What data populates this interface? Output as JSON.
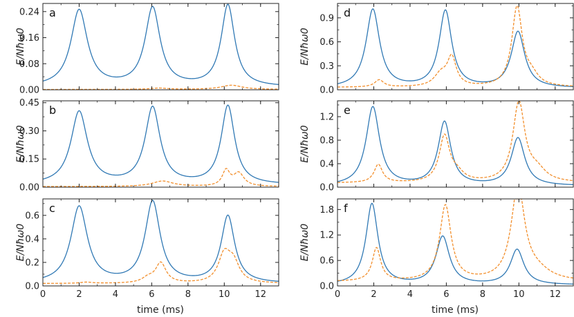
{
  "figure": {
    "xlabel_left": "time (ms)",
    "xlabel_right": "time (ms)"
  },
  "colors": {
    "series1": "#2f78b4",
    "series2": "#f28e2b"
  },
  "chart_data": [
    {
      "type": "line",
      "panel": "a",
      "ylabel": "E/Nħω0",
      "xlim": [
        0,
        13
      ],
      "ylim": [
        0,
        0.265
      ],
      "xticks": [
        "0",
        "2",
        "4",
        "6",
        "8",
        "10",
        "12"
      ],
      "yticks": [
        "0.00",
        "0.08",
        "0.16",
        "0.24"
      ],
      "ytick_values": [
        0,
        0.08,
        0.16,
        0.24
      ],
      "series": [
        {
          "style": "solid",
          "peaks": [
            [
              2.0,
              0.243,
              0.55
            ],
            [
              6.05,
              0.249,
              0.5
            ],
            [
              10.2,
              0.258,
              0.45
            ]
          ],
          "baseline": 0.008
        },
        {
          "style": "dashed",
          "peaks": [
            [
              6.4,
              0.005,
              0.6
            ],
            [
              10.4,
              0.014,
              0.7
            ]
          ],
          "baseline": 0.001
        }
      ]
    },
    {
      "type": "line",
      "panel": "b",
      "ylabel": "E/Nħω0",
      "xlim": [
        0,
        13
      ],
      "ylim": [
        0,
        0.46
      ],
      "xticks": [
        "0",
        "2",
        "4",
        "6",
        "8",
        "10",
        "12"
      ],
      "yticks": [
        "0.00",
        "0.15",
        "0.30",
        "0.45"
      ],
      "ytick_values": [
        0,
        0.15,
        0.3,
        0.45
      ],
      "series": [
        {
          "style": "solid",
          "peaks": [
            [
              2.0,
              0.4,
              0.55
            ],
            [
              6.05,
              0.42,
              0.5
            ],
            [
              10.2,
              0.43,
              0.45
            ]
          ],
          "baseline": 0.012
        },
        {
          "style": "dashed",
          "peaks": [
            [
              6.6,
              0.032,
              0.7
            ],
            [
              10.1,
              0.085,
              0.25
            ],
            [
              10.8,
              0.072,
              0.35
            ]
          ],
          "baseline": 0.003
        }
      ]
    },
    {
      "type": "line",
      "panel": "c",
      "ylabel": "E/Nħω0",
      "xlim": [
        0,
        13
      ],
      "ylim": [
        0,
        0.74
      ],
      "xticks": [
        "0",
        "2",
        "4",
        "6",
        "8",
        "10",
        "12"
      ],
      "yticks": [
        "0.0",
        "0.2",
        "0.4",
        "0.6"
      ],
      "ytick_values": [
        0,
        0.2,
        0.4,
        0.6
      ],
      "series": [
        {
          "style": "solid",
          "peaks": [
            [
              2.0,
              0.67,
              0.55
            ],
            [
              6.05,
              0.71,
              0.5
            ],
            [
              10.2,
              0.59,
              0.45
            ]
          ],
          "baseline": 0.02
        },
        {
          "style": "dashed",
          "peaks": [
            [
              2.4,
              0.03,
              0.4
            ],
            [
              5.8,
              0.06,
              0.4
            ],
            [
              6.5,
              0.19,
              0.35
            ],
            [
              10.0,
              0.25,
              0.4
            ],
            [
              10.5,
              0.18,
              0.4
            ]
          ],
          "baseline": 0.02
        }
      ]
    },
    {
      "type": "line",
      "panel": "d",
      "ylabel": "E/Nħω0",
      "xlim": [
        0,
        13
      ],
      "ylim": [
        0,
        1.08
      ],
      "xticks": [
        "0",
        "2",
        "4",
        "6",
        "8",
        "10",
        "12"
      ],
      "yticks": [
        "0.0",
        "0.3",
        "0.6",
        "0.9"
      ],
      "ytick_values": [
        0,
        0.3,
        0.6,
        0.9
      ],
      "series": [
        {
          "style": "solid",
          "peaks": [
            [
              1.95,
              1.0,
              0.45
            ],
            [
              5.95,
              0.98,
              0.42
            ],
            [
              9.95,
              0.72,
              0.45
            ]
          ],
          "baseline": 0.02
        },
        {
          "style": "dashed",
          "peaks": [
            [
              2.3,
              0.12,
              0.3
            ],
            [
              5.7,
              0.18,
              0.45
            ],
            [
              6.3,
              0.38,
              0.3
            ],
            [
              9.9,
              1.02,
              0.35
            ],
            [
              10.7,
              0.15,
              0.45
            ]
          ],
          "baseline": 0.03
        }
      ]
    },
    {
      "type": "line",
      "panel": "e",
      "ylabel": "E/Nħω0",
      "xlim": [
        0,
        13
      ],
      "ylim": [
        0,
        1.47
      ],
      "xticks": [
        "0",
        "2",
        "4",
        "6",
        "8",
        "10",
        "12"
      ],
      "yticks": [
        "0.0",
        "0.4",
        "0.8",
        "1.2"
      ],
      "ytick_values": [
        0,
        0.4,
        0.8,
        1.2
      ],
      "series": [
        {
          "style": "solid",
          "peaks": [
            [
              1.95,
              1.36,
              0.45
            ],
            [
              5.9,
              1.1,
              0.42
            ],
            [
              9.95,
              0.83,
              0.45
            ]
          ],
          "baseline": 0.02
        },
        {
          "style": "dashed",
          "peaks": [
            [
              2.25,
              0.38,
              0.28
            ],
            [
              5.9,
              0.85,
              0.35
            ],
            [
              6.6,
              0.2,
              0.45
            ],
            [
              10.0,
              1.42,
              0.4
            ],
            [
              11.0,
              0.25,
              0.6
            ]
          ],
          "baseline": 0.07
        }
      ]
    },
    {
      "type": "line",
      "panel": "f",
      "ylabel": "E/Nħω0",
      "xlim": [
        0,
        13
      ],
      "ylim": [
        0,
        2.05
      ],
      "xticks": [
        "0",
        "2",
        "4",
        "6",
        "8",
        "10",
        "12"
      ],
      "yticks": [
        "0.0",
        "0.6",
        "1.2",
        "1.8"
      ],
      "ytick_values": [
        0,
        0.6,
        1.2,
        1.8
      ],
      "series": [
        {
          "style": "solid",
          "peaks": [
            [
              1.9,
              1.93,
              0.4
            ],
            [
              5.8,
              1.15,
              0.45
            ],
            [
              9.9,
              0.85,
              0.45
            ]
          ],
          "baseline": 0.02
        },
        {
          "style": "dashed",
          "peaks": [
            [
              2.15,
              0.88,
              0.28
            ],
            [
              5.95,
              1.88,
              0.38
            ],
            [
              9.95,
              2.3,
              0.45
            ],
            [
              11.0,
              0.3,
              0.9
            ]
          ],
          "baseline": 0.1
        }
      ]
    }
  ]
}
